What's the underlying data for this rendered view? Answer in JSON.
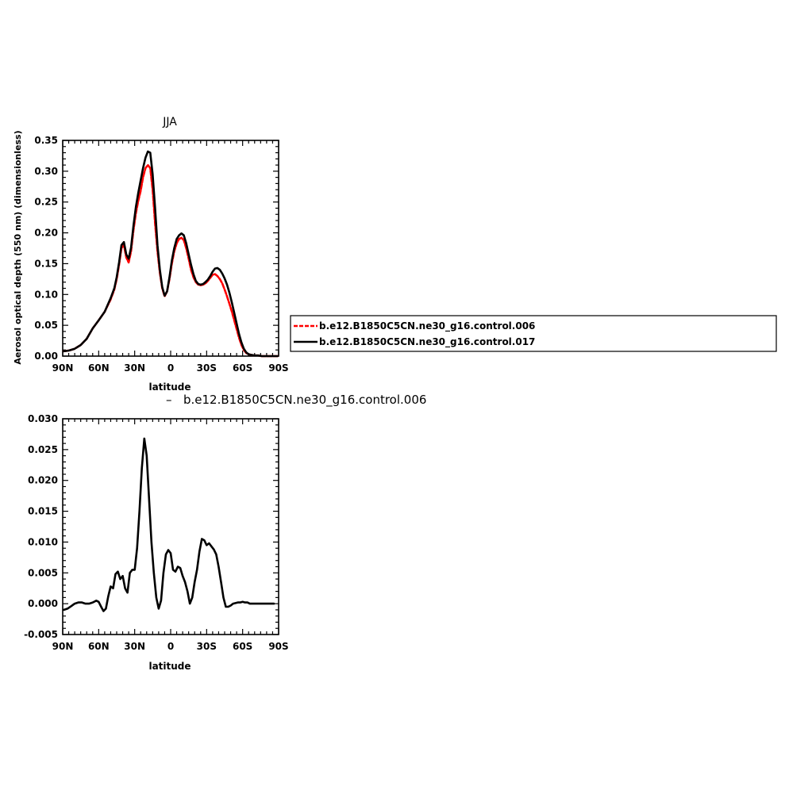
{
  "colors": {
    "control_006": "#ff0000",
    "control_017": "#000000"
  },
  "legend": {
    "placement": "right of top panel",
    "entries": [
      {
        "label": "b.e12.B1850C5CN.ne30_g16.control.006",
        "color": "#ff0000",
        "style": "dashed"
      },
      {
        "label": "b.e12.B1850C5CN.ne30_g16.control.017",
        "color": "#000000",
        "style": "solid"
      }
    ]
  },
  "chart_data": [
    {
      "type": "line",
      "title": "JJA",
      "xlabel": "latitude",
      "ylabel": "Aerosol optical depth (550 nm) (dimensionless)",
      "xlim": [
        90,
        -90
      ],
      "ylim": [
        0,
        0.35
      ],
      "xticks": [
        90,
        60,
        30,
        0,
        -30,
        -60,
        -90
      ],
      "xtick_labels": [
        "90N",
        "60N",
        "30N",
        "0",
        "30S",
        "60S",
        "90S"
      ],
      "yticks": [
        0,
        0.05,
        0.1,
        0.15,
        0.2,
        0.25,
        0.3,
        0.35
      ],
      "ytick_labels": [
        "0.00",
        "0.05",
        "0.10",
        "0.15",
        "0.20",
        "0.25",
        "0.30",
        "0.35"
      ],
      "x": [
        89,
        85,
        80,
        75,
        70,
        65,
        60,
        55,
        50,
        47,
        45,
        43,
        41,
        39,
        37,
        35,
        33,
        31,
        29,
        27,
        25,
        23,
        21,
        19,
        17,
        15,
        13,
        11,
        9,
        7,
        5,
        3,
        1,
        -1,
        -3,
        -5,
        -7,
        -9,
        -11,
        -13,
        -15,
        -17,
        -19,
        -21,
        -23,
        -25,
        -27,
        -29,
        -31,
        -33,
        -35,
        -37,
        -39,
        -41,
        -43,
        -45,
        -47,
        -49,
        -51,
        -53,
        -55,
        -57,
        -59,
        -61,
        -63,
        -65,
        -67,
        -70,
        -73,
        -76,
        -80,
        -85,
        -89
      ],
      "series": [
        {
          "name": "b.e12.B1850C5CN.ne30_g16.control.006",
          "color": "#ff0000",
          "dashed": true,
          "values": [
            0.008,
            0.009,
            0.012,
            0.018,
            0.028,
            0.045,
            0.058,
            0.072,
            0.092,
            0.108,
            0.125,
            0.148,
            0.175,
            0.18,
            0.16,
            0.152,
            0.17,
            0.205,
            0.232,
            0.252,
            0.268,
            0.29,
            0.305,
            0.31,
            0.305,
            0.27,
            0.215,
            0.17,
            0.135,
            0.11,
            0.097,
            0.105,
            0.125,
            0.15,
            0.17,
            0.183,
            0.19,
            0.192,
            0.188,
            0.175,
            0.158,
            0.14,
            0.128,
            0.12,
            0.116,
            0.115,
            0.116,
            0.118,
            0.122,
            0.127,
            0.132,
            0.133,
            0.13,
            0.125,
            0.118,
            0.108,
            0.097,
            0.085,
            0.072,
            0.058,
            0.044,
            0.03,
            0.018,
            0.01,
            0.005,
            0.003,
            0.002,
            0.001,
            0.001,
            0.0,
            0.0,
            0.0,
            0.0
          ]
        },
        {
          "name": "b.e12.B1850C5CN.ne30_g16.control.017",
          "color": "#000000",
          "dashed": false,
          "values": [
            0.008,
            0.009,
            0.012,
            0.018,
            0.028,
            0.045,
            0.058,
            0.072,
            0.094,
            0.11,
            0.128,
            0.152,
            0.18,
            0.185,
            0.165,
            0.158,
            0.176,
            0.212,
            0.242,
            0.265,
            0.285,
            0.305,
            0.322,
            0.332,
            0.33,
            0.295,
            0.24,
            0.18,
            0.14,
            0.112,
            0.098,
            0.105,
            0.128,
            0.155,
            0.175,
            0.19,
            0.196,
            0.199,
            0.196,
            0.183,
            0.165,
            0.148,
            0.133,
            0.122,
            0.117,
            0.116,
            0.117,
            0.12,
            0.124,
            0.13,
            0.137,
            0.142,
            0.143,
            0.14,
            0.134,
            0.126,
            0.116,
            0.103,
            0.087,
            0.07,
            0.053,
            0.036,
            0.022,
            0.012,
            0.006,
            0.003,
            0.002,
            0.001,
            0.001,
            0.0,
            0.0,
            0.0,
            0.0
          ]
        }
      ]
    },
    {
      "type": "line",
      "title": "b.e12.B1850C5CN.ne30_g16.control.006",
      "xlabel": "latitude",
      "ylabel": "",
      "xlim": [
        90,
        -90
      ],
      "ylim": [
        -0.005,
        0.03
      ],
      "xticks": [
        90,
        60,
        30,
        0,
        -30,
        -60,
        -90
      ],
      "xtick_labels": [
        "90N",
        "60N",
        "30N",
        "0",
        "30S",
        "60S",
        "90S"
      ],
      "yticks": [
        -0.005,
        0,
        0.005,
        0.01,
        0.015,
        0.02,
        0.025,
        0.03
      ],
      "ytick_labels": [
        "-0.005",
        "0.000",
        "0.005",
        "0.010",
        "0.015",
        "0.020",
        "0.025",
        "0.030"
      ],
      "x": [
        89,
        86,
        83,
        80,
        77,
        74,
        71,
        68,
        65,
        62,
        60,
        58,
        56,
        54,
        52,
        50,
        48,
        46,
        44,
        42,
        40,
        38,
        36,
        34,
        32,
        30,
        28,
        26,
        24,
        22,
        20,
        18,
        16,
        14,
        12,
        10,
        8,
        6,
        4,
        2,
        0,
        -2,
        -4,
        -6,
        -8,
        -10,
        -12,
        -14,
        -16,
        -18,
        -20,
        -22,
        -24,
        -26,
        -28,
        -30,
        -32,
        -34,
        -36,
        -38,
        -40,
        -42,
        -44,
        -46,
        -48,
        -50,
        -52,
        -54,
        -56,
        -58,
        -60,
        -62,
        -64,
        -66,
        -68,
        -70,
        -72,
        -74,
        -76,
        -78,
        -80,
        -82,
        -84,
        -86
      ],
      "series": [
        {
          "name": "",
          "color": "#000000",
          "dashed": false,
          "values": [
            -0.001,
            -0.0008,
            -0.0004,
            0.0,
            0.0002,
            0.0002,
            0.0,
            0.0,
            0.0002,
            0.0005,
            0.0003,
            -0.0005,
            -0.0012,
            -0.0008,
            0.0012,
            0.0028,
            0.0025,
            0.0048,
            0.0052,
            0.004,
            0.0045,
            0.0025,
            0.0018,
            0.005,
            0.0055,
            0.0055,
            0.009,
            0.015,
            0.022,
            0.0268,
            0.024,
            0.017,
            0.01,
            0.005,
            0.001,
            -0.0008,
            0.0005,
            0.005,
            0.008,
            0.0087,
            0.0082,
            0.0055,
            0.0052,
            0.006,
            0.0058,
            0.0045,
            0.0035,
            0.002,
            0.0,
            0.001,
            0.0035,
            0.0055,
            0.0085,
            0.0105,
            0.0103,
            0.0095,
            0.0098,
            0.0093,
            0.0088,
            0.008,
            0.006,
            0.0035,
            0.001,
            -0.0005,
            -0.0005,
            -0.0003,
            0.0,
            0.0001,
            0.0002,
            0.0002,
            0.0003,
            0.0002,
            0.0002,
            0.0,
            0.0,
            0.0,
            0.0,
            0.0,
            0.0,
            0.0,
            0.0,
            0.0,
            0.0,
            0.0
          ]
        }
      ]
    }
  ]
}
